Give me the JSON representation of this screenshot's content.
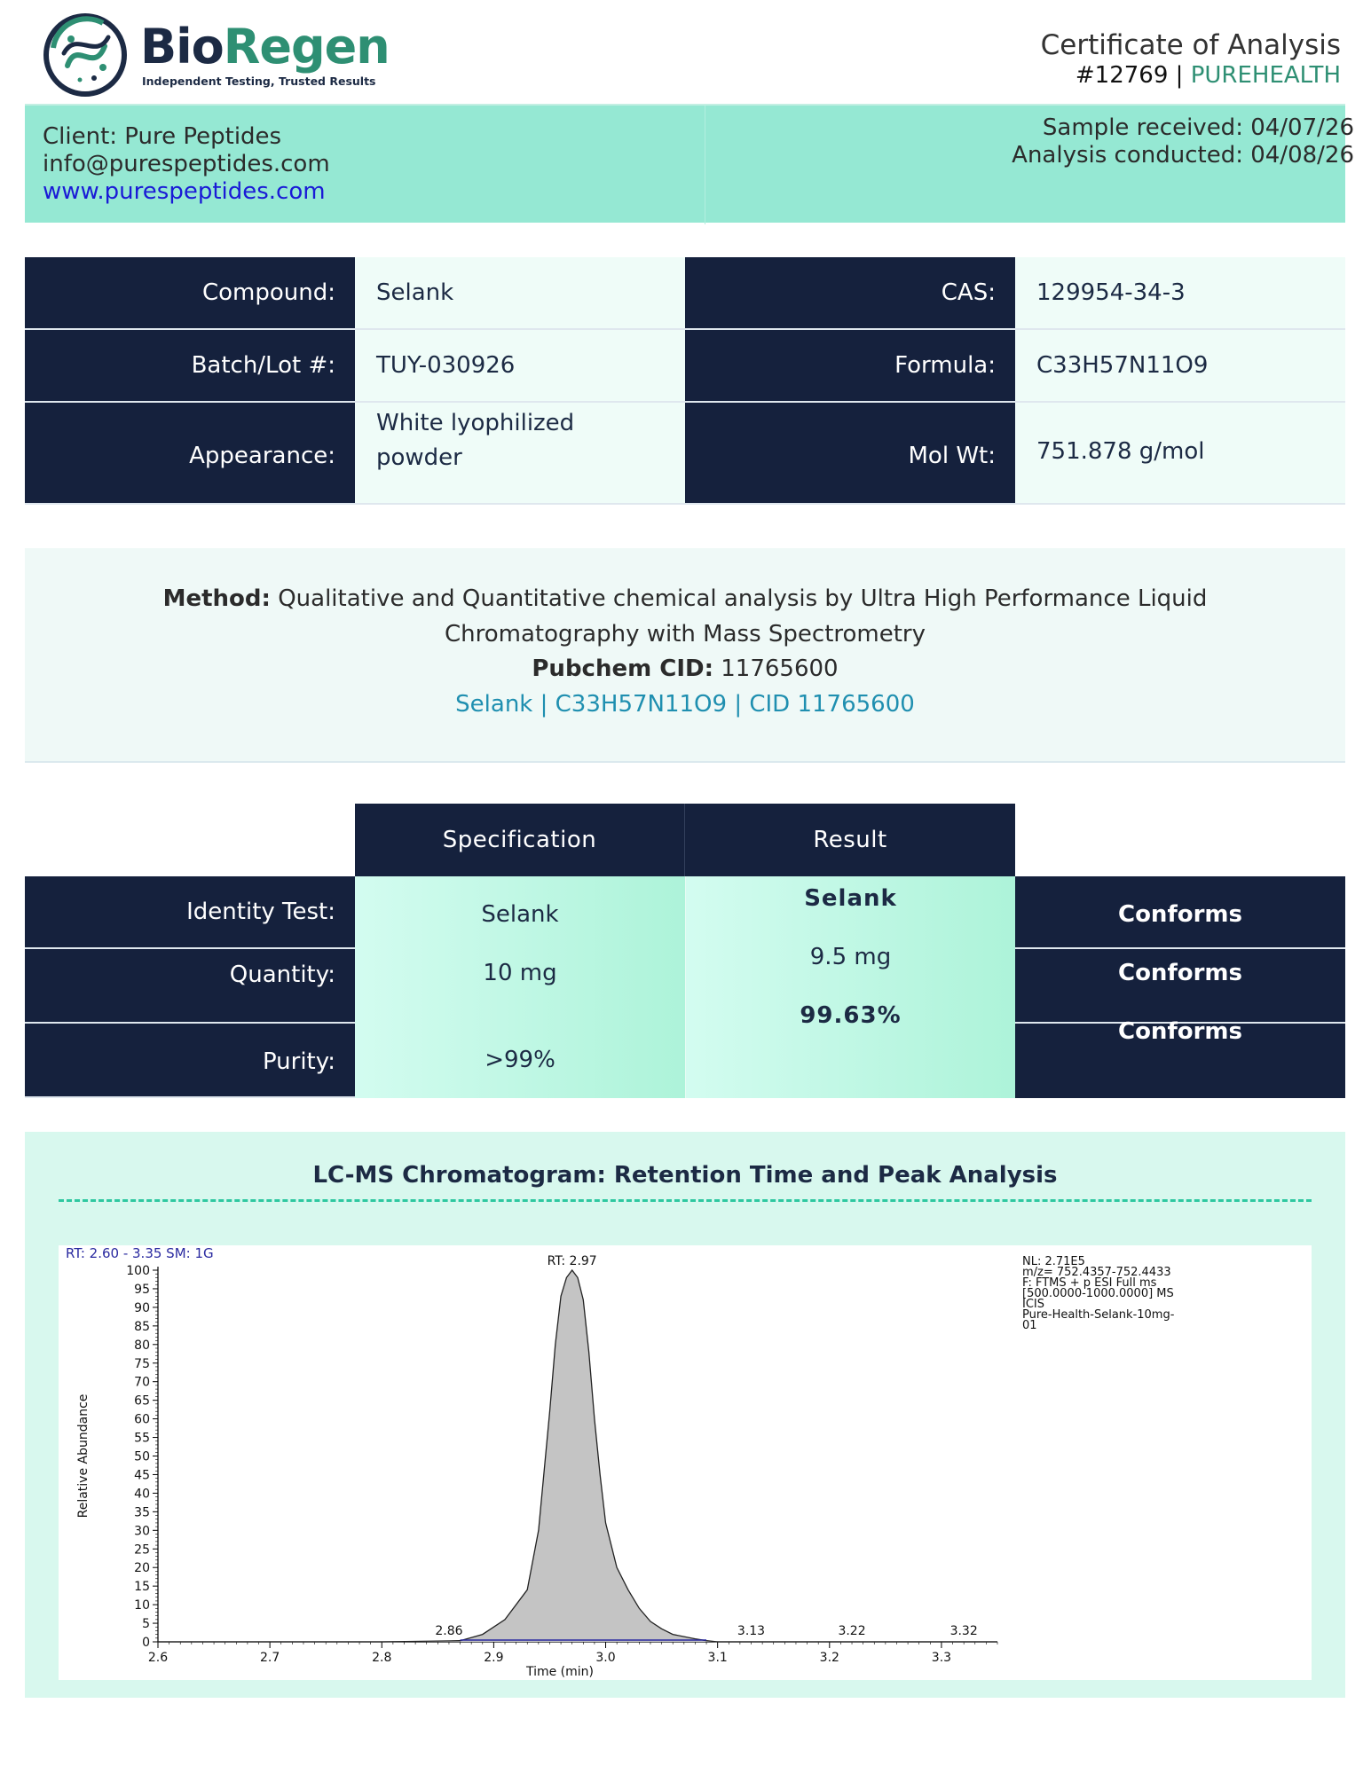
{
  "header": {
    "logo_name_part1": "Bio",
    "logo_name_part2": "Regen",
    "logo_tagline": "Independent Testing, Trusted Results",
    "document_title": "Certificate of Analysis",
    "certificate_number": "#12769",
    "separator": " | ",
    "brand_code": "PUREHEALTH"
  },
  "client": {
    "name": "Client: Pure Peptides",
    "email": "info@purespeptides.com",
    "website": "www.purespeptides.com",
    "sample_received": "Sample received: 04/07/26",
    "analysis_conducted": "Analysis conducted: 04/08/26"
  },
  "compound_info": {
    "compound_label": "Compound:",
    "compound_value": "Selank",
    "cas_label": "CAS:",
    "cas_value": "129954-34-3",
    "batch_label": "Batch/Lot #:",
    "batch_value": "TUY-030926",
    "formula_label": "Formula:",
    "formula_value": "C33H57N11O9",
    "appearance_label": "Appearance:",
    "appearance_value_line1": "White lyophilized",
    "appearance_value_line2": "powder",
    "molwt_label": "Mol Wt:",
    "molwt_value": "751.878 g/mol"
  },
  "method": {
    "method_label": "Method:",
    "method_text_line1": " Qualitative and Quantitative chemical analysis by Ultra High Performance Liquid",
    "method_text_line2": "Chromatography with Mass Spectrometry",
    "pubchem_label": "Pubchem CID:",
    "pubchem_value": " 11765600",
    "link_text": "Selank | C33H57N11O9 | CID 11765600"
  },
  "results": {
    "header_specification": "Specification",
    "header_result": "Result",
    "rows": [
      {
        "label": "Identity Test:",
        "spec": "Selank",
        "result": "Selank",
        "status": "Conforms"
      },
      {
        "label": "Quantity:",
        "spec": "10 mg",
        "result": "9.5 mg",
        "status": "Conforms"
      },
      {
        "label": "Purity:",
        "spec": ">99%",
        "result": "99.63%",
        "status": "Conforms"
      }
    ]
  },
  "chromatogram": {
    "title": "LC-MS Chromatogram: Retention Time and Peak Analysis",
    "header_left": "RT: 2.60 - 3.35   SM: 1G",
    "info_lines": [
      "NL: 2.71E5",
      "m/z= 752.4357-752.4433",
      "F: FTMS + p ESI Full ms",
      "[500.0000-1000.0000]  MS",
      " ICIS",
      "Pure-Health-Selank-10mg-",
      "01"
    ],
    "chart_data": {
      "type": "line",
      "xlabel": "Time (min)",
      "ylabel": "Relative Abundance",
      "xlim": [
        2.6,
        3.35
      ],
      "ylim": [
        0,
        100
      ],
      "x_ticks": [
        "2.6",
        "2.7",
        "2.8",
        "2.9",
        "3.0",
        "3.1",
        "3.2",
        "3.3"
      ],
      "y_ticks": [
        "0",
        "5",
        "10",
        "15",
        "20",
        "25",
        "30",
        "35",
        "40",
        "45",
        "50",
        "55",
        "60",
        "65",
        "70",
        "75",
        "80",
        "85",
        "90",
        "95",
        "100"
      ],
      "peak_labels": [
        {
          "text": "RT: 2.97",
          "x": 2.97,
          "y": 100
        },
        {
          "text": "2.86",
          "x": 2.86,
          "y": 0.5
        },
        {
          "text": "3.13",
          "x": 3.13,
          "y": 0.5
        },
        {
          "text": "3.22",
          "x": 3.22,
          "y": 0.5
        },
        {
          "text": "3.32",
          "x": 3.32,
          "y": 0.5
        }
      ],
      "series": [
        {
          "x": [
            2.6,
            2.7,
            2.8,
            2.87,
            2.89,
            2.91,
            2.93,
            2.94,
            2.95,
            2.955,
            2.96,
            2.965,
            2.97,
            2.975,
            2.98,
            2.985,
            2.99,
            2.995,
            3.0,
            3.01,
            3.02,
            3.03,
            3.04,
            3.05,
            3.06,
            3.08,
            3.09,
            3.1,
            3.2,
            3.3,
            3.35
          ],
          "values": [
            0,
            0,
            0,
            0.3,
            2,
            6,
            14,
            30,
            62,
            80,
            93,
            98,
            100,
            98,
            92,
            78,
            60,
            45,
            32,
            20,
            14,
            9,
            5.5,
            3.5,
            2,
            0.8,
            0.3,
            0,
            0,
            0,
            0
          ]
        }
      ]
    }
  },
  "colors": {
    "navy": "#15213d",
    "mint": "#95e8d3",
    "teal_brand": "#2e8f73",
    "link_blue": "#1f8fb0"
  }
}
